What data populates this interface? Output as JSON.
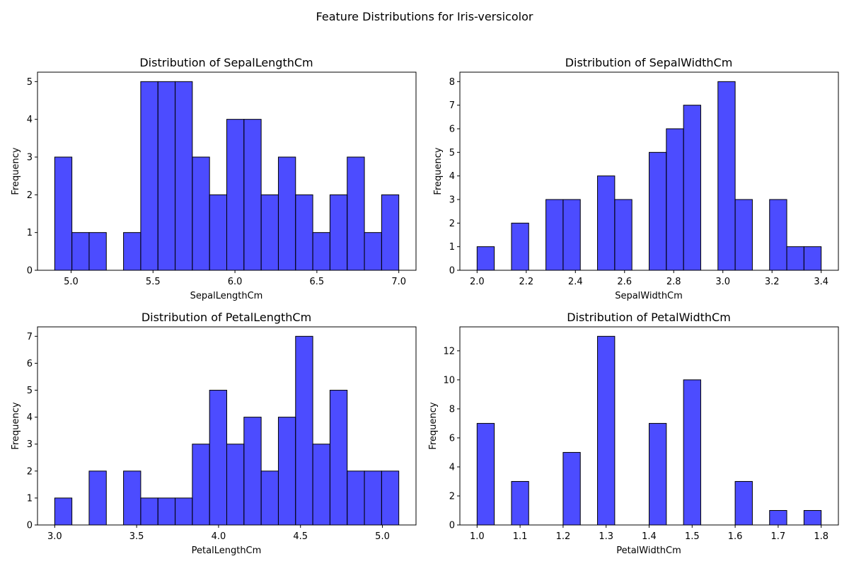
{
  "figure": {
    "suptitle": "Feature Distributions for Iris-versicolor",
    "bar_color": "#0000ff",
    "bar_edge_color": "#000000"
  },
  "chart_data": [
    {
      "type": "bar",
      "title": "Distribution of SepalLengthCm",
      "xlabel": "SepalLengthCm",
      "ylabel": "Frequency",
      "bin_range": [
        4.9,
        7.0
      ],
      "bin_count": 20,
      "values": [
        3,
        1,
        1,
        0,
        1,
        5,
        5,
        5,
        3,
        2,
        4,
        4,
        2,
        3,
        2,
        1,
        2,
        3,
        1,
        2
      ],
      "xlim": [
        4.795,
        7.105
      ],
      "ylim": [
        0,
        5.25
      ],
      "xticks": [
        "5.0",
        "5.5",
        "6.0",
        "6.5",
        "7.0"
      ],
      "yticks": [
        "0",
        "1",
        "2",
        "3",
        "4",
        "5"
      ]
    },
    {
      "type": "bar",
      "title": "Distribution of SepalWidthCm",
      "xlabel": "SepalWidthCm",
      "ylabel": "Frequency",
      "bin_range": [
        2.0,
        3.4
      ],
      "bin_count": 20,
      "values": [
        1,
        0,
        2,
        0,
        3,
        3,
        0,
        4,
        3,
        0,
        5,
        6,
        7,
        0,
        8,
        3,
        0,
        3,
        1,
        1
      ],
      "xlim": [
        1.93,
        3.47
      ],
      "ylim": [
        0,
        8.4
      ],
      "xticks": [
        "2.0",
        "2.2",
        "2.4",
        "2.6",
        "2.8",
        "3.0",
        "3.2",
        "3.4"
      ],
      "yticks": [
        "0",
        "1",
        "2",
        "3",
        "4",
        "5",
        "6",
        "7",
        "8"
      ]
    },
    {
      "type": "bar",
      "title": "Distribution of PetalLengthCm",
      "xlabel": "PetalLengthCm",
      "ylabel": "Frequency",
      "bin_range": [
        3.0,
        5.1
      ],
      "bin_count": 20,
      "values": [
        1,
        0,
        2,
        0,
        2,
        1,
        1,
        1,
        3,
        5,
        3,
        4,
        2,
        4,
        7,
        3,
        5,
        2,
        2,
        2
      ],
      "xlim": [
        2.895,
        5.205
      ],
      "ylim": [
        0,
        7.35
      ],
      "xticks": [
        "3.0",
        "3.5",
        "4.0",
        "4.5",
        "5.0"
      ],
      "yticks": [
        "0",
        "1",
        "2",
        "3",
        "4",
        "5",
        "6",
        "7"
      ]
    },
    {
      "type": "bar",
      "title": "Distribution of PetalWidthCm",
      "xlabel": "PetalWidthCm",
      "ylabel": "Frequency",
      "bin_range": [
        1.0,
        1.8
      ],
      "bin_count": 20,
      "values": [
        7,
        0,
        3,
        0,
        0,
        5,
        0,
        13,
        0,
        0,
        7,
        0,
        10,
        0,
        0,
        3,
        0,
        1,
        0,
        1
      ],
      "xlim": [
        0.96,
        1.84
      ],
      "ylim": [
        0,
        13.65
      ],
      "xticks": [
        "1.0",
        "1.1",
        "1.2",
        "1.3",
        "1.4",
        "1.5",
        "1.6",
        "1.7",
        "1.8"
      ],
      "yticks": [
        "0",
        "2",
        "4",
        "6",
        "8",
        "10",
        "12"
      ]
    }
  ]
}
